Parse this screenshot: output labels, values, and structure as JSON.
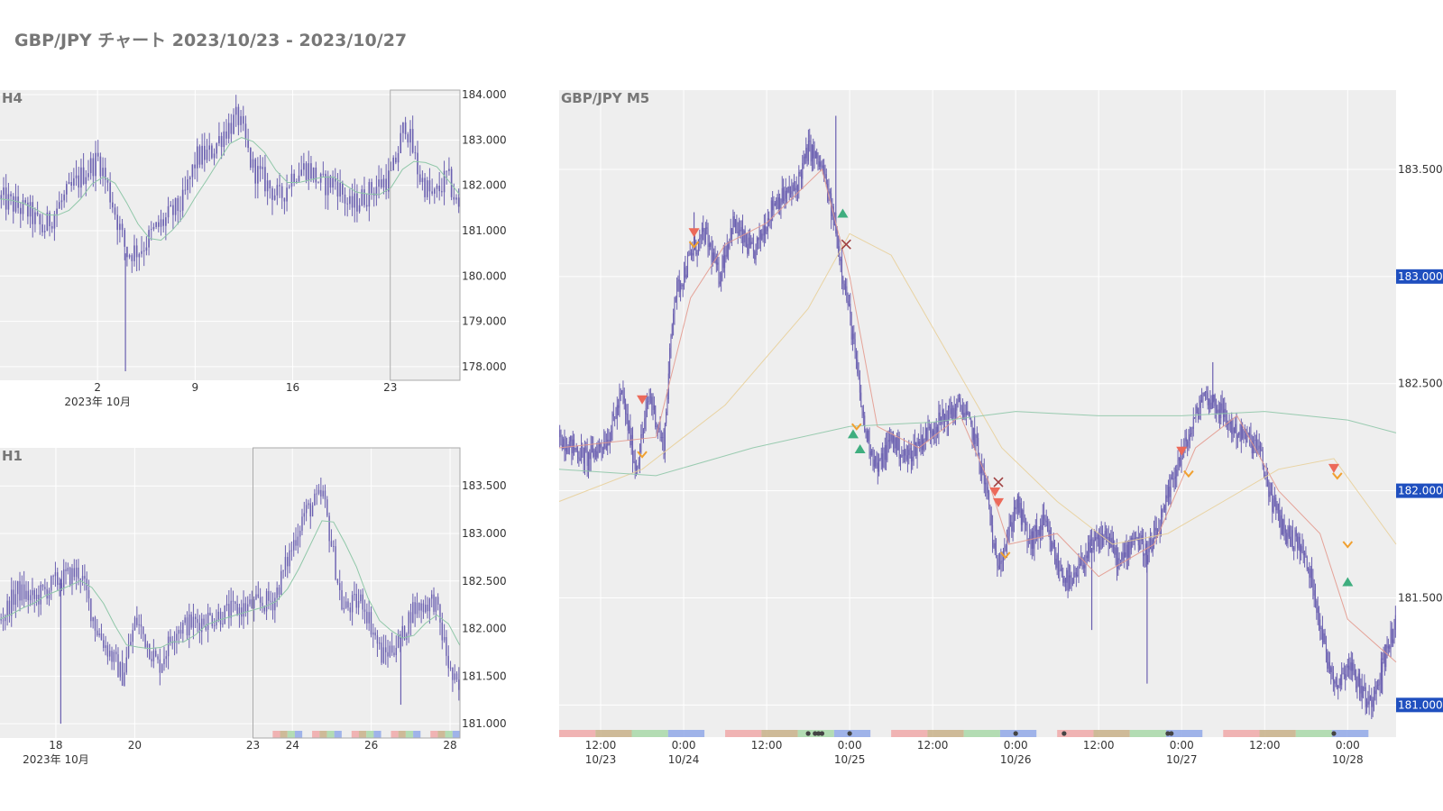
{
  "page": {
    "title": "GBP/JPY チャート 2023/10/23 - 2023/10/27"
  },
  "colors": {
    "background": "#eeeeee",
    "grid": "#ffffff",
    "candle": "#6a5fb0",
    "ma_fast": "#e39a8e",
    "ma_mid": "#e8cf99",
    "ma_slow": "#8fc7a8",
    "sell_marker": "#ec6a5a",
    "buy_marker": "#3fae7f",
    "close_marker": "#a04040",
    "exit_marker": "#f0a030",
    "price_badge": "#1f4fbf",
    "range_box": "#aaaaaa"
  },
  "chart_data": [
    {
      "id": "h4",
      "type": "candlestick",
      "label": "H4",
      "ylim": [
        177.7,
        184.1
      ],
      "y_ticks": [
        "184.000",
        "183.000",
        "182.000",
        "181.000",
        "180.000",
        "179.000",
        "178.000"
      ],
      "y_tick_values": [
        184,
        183,
        182,
        181,
        180,
        179,
        178
      ],
      "x_range": [
        "2023-09-25",
        "2023-10-28"
      ],
      "x_ticks": [
        {
          "label": "2",
          "sub": "2023年 10月",
          "date": "2023-10-02"
        },
        {
          "label": "9",
          "sub": "",
          "date": "2023-10-09"
        },
        {
          "label": "16",
          "sub": "",
          "date": "2023-10-16"
        },
        {
          "label": "23",
          "sub": "",
          "date": "2023-10-23"
        }
      ],
      "highlight_range": [
        "2023-10-23",
        "2023-10-28"
      ],
      "keypoints": [
        [
          "2023-09-25",
          181.7
        ],
        [
          "2023-09-27",
          181.4
        ],
        [
          "2023-09-28",
          181.0
        ],
        [
          "2023-09-29",
          181.5
        ],
        [
          "2023-10-01",
          182.3
        ],
        [
          "2023-10-02",
          182.6
        ],
        [
          "2023-10-03",
          181.6
        ],
        [
          "2023-10-04",
          180.5
        ],
        [
          "2023-10-05",
          180.6
        ],
        [
          "2023-10-06",
          181.0
        ],
        [
          "2023-10-08",
          181.6
        ],
        [
          "2023-10-09",
          182.6
        ],
        [
          "2023-10-10",
          182.7
        ],
        [
          "2023-10-11",
          183.2
        ],
        [
          "2023-10-12",
          183.5
        ],
        [
          "2023-10-13",
          182.4
        ],
        [
          "2023-10-15",
          181.7
        ],
        [
          "2023-10-16",
          182.3
        ],
        [
          "2023-10-17",
          182.4
        ],
        [
          "2023-10-18",
          182.0
        ],
        [
          "2023-10-19",
          182.1
        ],
        [
          "2023-10-20",
          181.5
        ],
        [
          "2023-10-22",
          182.0
        ],
        [
          "2023-10-23",
          182.2
        ],
        [
          "2023-10-24",
          183.4
        ],
        [
          "2023-10-25",
          182.2
        ],
        [
          "2023-10-26",
          181.7
        ],
        [
          "2023-10-27",
          182.2
        ],
        [
          "2023-10-28",
          181.3
        ]
      ],
      "spikes": [
        [
          "2023-10-04",
          177.9
        ]
      ]
    },
    {
      "id": "h1",
      "type": "candlestick",
      "label": "H1",
      "ylim": [
        180.85,
        183.9
      ],
      "y_ticks": [
        "183.500",
        "183.000",
        "182.500",
        "182.000",
        "181.500",
        "181.000"
      ],
      "y_tick_values": [
        183.5,
        183.0,
        182.5,
        182.0,
        181.5,
        181.0
      ],
      "x_range": [
        "2023-10-16T14:00",
        "2023-10-28T06:00"
      ],
      "x_ticks": [
        {
          "label": "18",
          "sub": "2023年 10月",
          "date": "2023-10-18T00:00"
        },
        {
          "label": "20",
          "sub": "",
          "date": "2023-10-20T00:00"
        },
        {
          "label": "23",
          "sub": "",
          "date": "2023-10-23T00:00"
        },
        {
          "label": "24",
          "sub": "",
          "date": "2023-10-24T00:00"
        },
        {
          "label": "26",
          "sub": "",
          "date": "2023-10-26T00:00"
        },
        {
          "label": "28",
          "sub": "",
          "date": "2023-10-28T00:00"
        }
      ],
      "highlight_range": [
        "2023-10-23T00:00",
        "2023-10-28T06:00"
      ],
      "keypoints": [
        [
          "2023-10-16T14:00",
          182.1
        ],
        [
          "2023-10-17T00:00",
          182.4
        ],
        [
          "2023-10-17T10:00",
          182.3
        ],
        [
          "2023-10-18T00:00",
          182.5
        ],
        [
          "2023-10-18T14:00",
          182.6
        ],
        [
          "2023-10-19T00:00",
          182.0
        ],
        [
          "2023-10-19T16:00",
          181.5
        ],
        [
          "2023-10-20T00:00",
          182.1
        ],
        [
          "2023-10-20T14:00",
          181.6
        ],
        [
          "2023-10-21T00:00",
          182.0
        ],
        [
          "2023-10-22T14:00",
          182.2
        ],
        [
          "2023-10-23T12:00",
          182.3
        ],
        [
          "2023-10-24T06:00",
          183.2
        ],
        [
          "2023-10-24T18:00",
          183.4
        ],
        [
          "2023-10-25T06:00",
          182.2
        ],
        [
          "2023-10-25T18:00",
          182.3
        ],
        [
          "2023-10-26T06:00",
          181.7
        ],
        [
          "2023-10-26T18:00",
          181.9
        ],
        [
          "2023-10-27T00:00",
          182.2
        ],
        [
          "2023-10-27T14:00",
          182.3
        ],
        [
          "2023-10-28T00:00",
          181.5
        ],
        [
          "2023-10-28T06:00",
          181.3
        ]
      ],
      "spikes": [
        [
          "2023-10-18T03:00",
          181.0
        ],
        [
          "2023-10-26T18:00",
          181.2
        ]
      ],
      "session_bands": [
        "2023-10-23T12:00",
        "2023-10-24T12:00",
        "2023-10-25T12:00",
        "2023-10-26T12:00",
        "2023-10-27T12:00"
      ]
    },
    {
      "id": "m5",
      "type": "candlestick",
      "label": "GBP/JPY M5",
      "ylim": [
        180.85,
        183.87
      ],
      "y_ticks": [
        "183.500",
        "183.000",
        "182.500",
        "182.000",
        "181.500",
        "181.000"
      ],
      "y_tick_values": [
        183.5,
        183.0,
        182.5,
        182.0,
        181.5,
        181.0
      ],
      "badge_levels": [
        183.0,
        182.0,
        181.0
      ],
      "x_range": [
        "2023-10-23T06:00",
        "2023-10-28T07:00"
      ],
      "x_ticks": [
        {
          "label": "12:00",
          "sub": "10/23",
          "date": "2023-10-23T12:00"
        },
        {
          "label": "0:00",
          "sub": "10/24",
          "date": "2023-10-24T00:00"
        },
        {
          "label": "12:00",
          "sub": "",
          "date": "2023-10-24T12:00"
        },
        {
          "label": "0:00",
          "sub": "10/25",
          "date": "2023-10-25T00:00"
        },
        {
          "label": "12:00",
          "sub": "",
          "date": "2023-10-25T12:00"
        },
        {
          "label": "0:00",
          "sub": "10/26",
          "date": "2023-10-26T00:00"
        },
        {
          "label": "12:00",
          "sub": "",
          "date": "2023-10-26T12:00"
        },
        {
          "label": "0:00",
          "sub": "10/27",
          "date": "2023-10-27T00:00"
        },
        {
          "label": "12:00",
          "sub": "",
          "date": "2023-10-27T12:00"
        },
        {
          "label": "0:00",
          "sub": "10/28",
          "date": "2023-10-28T00:00"
        }
      ],
      "keypoints": [
        [
          "2023-10-23T06:00",
          182.25
        ],
        [
          "2023-10-23T10:00",
          182.15
        ],
        [
          "2023-10-23T13:00",
          182.25
        ],
        [
          "2023-10-23T15:00",
          182.45
        ],
        [
          "2023-10-23T17:00",
          182.1
        ],
        [
          "2023-10-23T19:00",
          182.45
        ],
        [
          "2023-10-23T21:00",
          182.2
        ],
        [
          "2023-10-23T22:30",
          182.9
        ],
        [
          "2023-10-24T01:00",
          183.1
        ],
        [
          "2023-10-24T03:00",
          183.2
        ],
        [
          "2023-10-24T05:00",
          183.0
        ],
        [
          "2023-10-24T07:00",
          183.25
        ],
        [
          "2023-10-24T10:00",
          183.1
        ],
        [
          "2023-10-24T13:00",
          183.35
        ],
        [
          "2023-10-24T16:00",
          183.4
        ],
        [
          "2023-10-24T18:00",
          183.6
        ],
        [
          "2023-10-24T20:00",
          183.5
        ],
        [
          "2023-10-24T22:00",
          183.2
        ],
        [
          "2023-10-25T00:00",
          182.8
        ],
        [
          "2023-10-25T02:00",
          182.3
        ],
        [
          "2023-10-25T04:00",
          182.1
        ],
        [
          "2023-10-25T06:00",
          182.25
        ],
        [
          "2023-10-25T08:00",
          182.15
        ],
        [
          "2023-10-25T12:00",
          182.3
        ],
        [
          "2023-10-25T16:00",
          182.4
        ],
        [
          "2023-10-25T18:00",
          182.25
        ],
        [
          "2023-10-25T20:00",
          181.95
        ],
        [
          "2023-10-25T21:00",
          181.65
        ],
        [
          "2023-10-25T23:00",
          181.8
        ],
        [
          "2023-10-26T00:00",
          181.95
        ],
        [
          "2023-10-26T02:00",
          181.75
        ],
        [
          "2023-10-26T04:00",
          181.85
        ],
        [
          "2023-10-26T06:00",
          181.65
        ],
        [
          "2023-10-26T08:00",
          181.55
        ],
        [
          "2023-10-26T10:00",
          181.7
        ],
        [
          "2023-10-26T13:00",
          181.8
        ],
        [
          "2023-10-26T15:00",
          181.65
        ],
        [
          "2023-10-26T17:00",
          181.8
        ],
        [
          "2023-10-26T19:00",
          181.7
        ],
        [
          "2023-10-26T21:00",
          181.85
        ],
        [
          "2023-10-26T23:00",
          182.1
        ],
        [
          "2023-10-27T01:00",
          182.25
        ],
        [
          "2023-10-27T03:00",
          182.45
        ],
        [
          "2023-10-27T05:00",
          182.4
        ],
        [
          "2023-10-27T07:00",
          182.3
        ],
        [
          "2023-10-27T09:00",
          182.25
        ],
        [
          "2023-10-27T11:00",
          182.2
        ],
        [
          "2023-10-27T13:00",
          181.95
        ],
        [
          "2023-10-27T15:00",
          181.8
        ],
        [
          "2023-10-27T17:00",
          181.75
        ],
        [
          "2023-10-27T19:00",
          181.55
        ],
        [
          "2023-10-27T21:00",
          181.2
        ],
        [
          "2023-10-27T22:30",
          181.1
        ],
        [
          "2023-10-28T00:00",
          181.2
        ],
        [
          "2023-10-28T03:00",
          181.0
        ],
        [
          "2023-10-28T07:00",
          181.4
        ]
      ],
      "spikes": [
        [
          "2023-10-24T22:00",
          183.75
        ],
        [
          "2023-10-24T01:30",
          183.3
        ],
        [
          "2023-10-26T19:00",
          181.1
        ],
        [
          "2023-10-27T04:30",
          182.6
        ],
        [
          "2023-10-26T11:00",
          181.35
        ],
        [
          "2023-10-28T05:00",
          181.05
        ]
      ],
      "ma_fast": [
        [
          "2023-10-23T06:00",
          182.2
        ],
        [
          "2023-10-23T20:00",
          182.25
        ],
        [
          "2023-10-24T01:00",
          182.9
        ],
        [
          "2023-10-24T06:00",
          183.15
        ],
        [
          "2023-10-24T12:00",
          183.25
        ],
        [
          "2023-10-24T20:00",
          183.5
        ],
        [
          "2023-10-25T00:00",
          183.0
        ],
        [
          "2023-10-25T04:00",
          182.3
        ],
        [
          "2023-10-25T10:00",
          182.2
        ],
        [
          "2023-10-25T16:00",
          182.35
        ],
        [
          "2023-10-25T20:00",
          182.05
        ],
        [
          "2023-10-25T23:00",
          181.75
        ],
        [
          "2023-10-26T06:00",
          181.8
        ],
        [
          "2023-10-26T12:00",
          181.6
        ],
        [
          "2023-10-26T20:00",
          181.75
        ],
        [
          "2023-10-27T02:00",
          182.2
        ],
        [
          "2023-10-27T08:00",
          182.35
        ],
        [
          "2023-10-27T14:00",
          182.0
        ],
        [
          "2023-10-27T20:00",
          181.8
        ],
        [
          "2023-10-28T00:00",
          181.4
        ],
        [
          "2023-10-28T07:00",
          181.2
        ]
      ],
      "ma_mid": [
        [
          "2023-10-23T06:00",
          181.95
        ],
        [
          "2023-10-23T18:00",
          182.1
        ],
        [
          "2023-10-24T06:00",
          182.4
        ],
        [
          "2023-10-24T18:00",
          182.85
        ],
        [
          "2023-10-25T00:00",
          183.2
        ],
        [
          "2023-10-25T06:00",
          183.1
        ],
        [
          "2023-10-25T14:00",
          182.65
        ],
        [
          "2023-10-25T22:00",
          182.2
        ],
        [
          "2023-10-26T06:00",
          181.95
        ],
        [
          "2023-10-26T14:00",
          181.75
        ],
        [
          "2023-10-26T22:00",
          181.8
        ],
        [
          "2023-10-27T06:00",
          181.95
        ],
        [
          "2023-10-27T14:00",
          182.1
        ],
        [
          "2023-10-27T22:00",
          182.15
        ],
        [
          "2023-10-28T07:00",
          181.75
        ]
      ],
      "ma_slow": [
        [
          "2023-10-23T06:00",
          182.1
        ],
        [
          "2023-10-23T20:00",
          182.07
        ],
        [
          "2023-10-24T10:00",
          182.2
        ],
        [
          "2023-10-25T00:00",
          182.3
        ],
        [
          "2023-10-25T12:00",
          182.32
        ],
        [
          "2023-10-26T00:00",
          182.37
        ],
        [
          "2023-10-26T12:00",
          182.35
        ],
        [
          "2023-10-27T00:00",
          182.35
        ],
        [
          "2023-10-27T12:00",
          182.37
        ],
        [
          "2023-10-28T00:00",
          182.33
        ],
        [
          "2023-10-28T07:00",
          182.27
        ]
      ],
      "trade_markers": [
        {
          "type": "sell",
          "t": "2023-10-23T18:00",
          "y": 182.42
        },
        {
          "type": "exit",
          "t": "2023-10-23T18:00",
          "y": 182.17
        },
        {
          "type": "sell",
          "t": "2023-10-24T01:30",
          "y": 183.2
        },
        {
          "type": "exit",
          "t": "2023-10-24T01:30",
          "y": 183.15
        },
        {
          "type": "buy",
          "t": "2023-10-24T23:00",
          "y": 183.3
        },
        {
          "type": "close",
          "t": "2023-10-24T23:30",
          "y": 183.15
        },
        {
          "type": "buy",
          "t": "2023-10-25T00:30",
          "y": 182.27
        },
        {
          "type": "buy",
          "t": "2023-10-25T01:30",
          "y": 182.2
        },
        {
          "type": "exit",
          "t": "2023-10-25T01:00",
          "y": 182.3
        },
        {
          "type": "close",
          "t": "2023-10-25T21:30",
          "y": 182.04
        },
        {
          "type": "sell",
          "t": "2023-10-25T21:00",
          "y": 181.99
        },
        {
          "type": "sell",
          "t": "2023-10-25T21:30",
          "y": 181.94
        },
        {
          "type": "exit",
          "t": "2023-10-25T22:30",
          "y": 181.7
        },
        {
          "type": "sell",
          "t": "2023-10-27T00:00",
          "y": 182.18
        },
        {
          "type": "exit",
          "t": "2023-10-27T01:00",
          "y": 182.08
        },
        {
          "type": "sell",
          "t": "2023-10-27T22:00",
          "y": 182.1
        },
        {
          "type": "exit",
          "t": "2023-10-27T22:30",
          "y": 182.07
        },
        {
          "type": "buy",
          "t": "2023-10-28T00:00",
          "y": 181.58
        },
        {
          "type": "exit",
          "t": "2023-10-28T00:00",
          "y": 181.75
        }
      ],
      "session_bands": [
        "2023-10-23T06:00",
        "2023-10-24T06:00",
        "2023-10-25T06:00",
        "2023-10-26T06:00",
        "2023-10-27T06:00"
      ],
      "session_dots": [
        "2023-10-24T18:00",
        "2023-10-24T19:00",
        "2023-10-24T19:30",
        "2023-10-24T20:00",
        "2023-10-25T00:00",
        "2023-10-26T00:00",
        "2023-10-26T07:00",
        "2023-10-26T22:00",
        "2023-10-26T22:30",
        "2023-10-27T22:00"
      ]
    }
  ]
}
